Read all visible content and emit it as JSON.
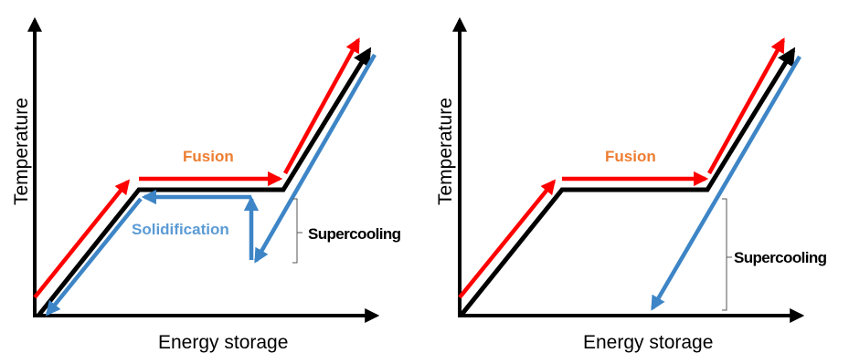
{
  "colors": {
    "heating": "#ff0000",
    "equilibrium": "#000000",
    "cooling": "#3d85c6",
    "fusion_text": "#ed7d31",
    "solidification_text": "#5b9bd5"
  },
  "left_diagram": {
    "y_axis_label": "Temperature",
    "x_axis_label": "Energy storage",
    "fusion_label": "Fusion",
    "solidification_label": "Solidification",
    "supercooling_label": "Supercooling"
  },
  "right_diagram": {
    "y_axis_label": "Temperature",
    "x_axis_label": "Energy storage",
    "fusion_label": "Fusion",
    "supercooling_label": "Supercooling"
  }
}
